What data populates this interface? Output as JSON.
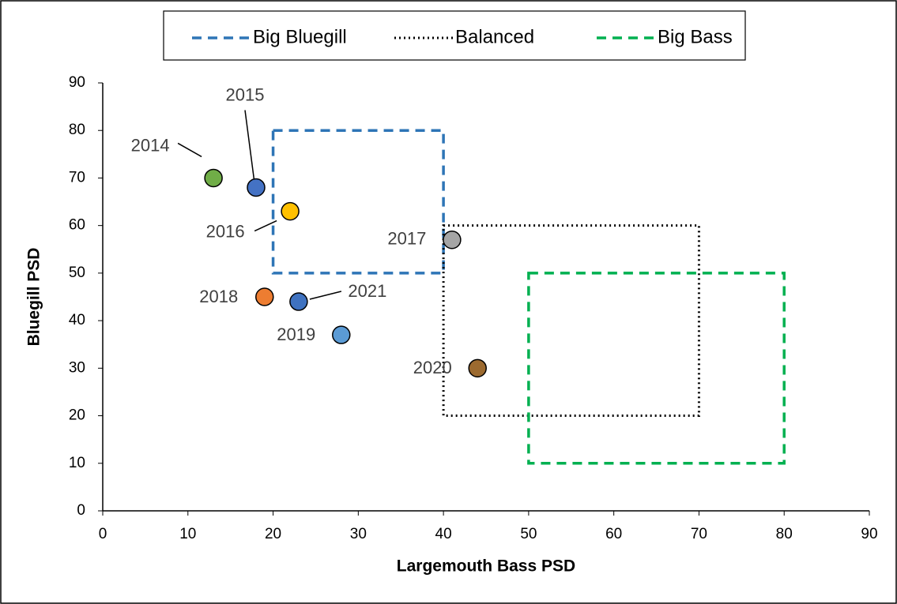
{
  "chart_data": {
    "type": "scatter",
    "x_label": "Largemouth Bass PSD",
    "y_label": "Bluegill PSD",
    "xlim": [
      0,
      90
    ],
    "xticks": [
      0,
      10,
      20,
      30,
      40,
      50,
      60,
      70,
      80,
      90
    ],
    "ylim": [
      0,
      90
    ],
    "yticks": [
      0,
      10,
      20,
      30,
      40,
      50,
      60,
      70,
      80,
      90
    ],
    "zones": [
      {
        "name": "Big Bluegill",
        "color": "#2e75b6",
        "style": "dashed",
        "x": [
          20,
          40
        ],
        "y": [
          50,
          80
        ]
      },
      {
        "name": "Balanced",
        "color": "#000000",
        "style": "dotted",
        "x": [
          40,
          70
        ],
        "y": [
          20,
          60
        ]
      },
      {
        "name": "Big Bass",
        "color": "#00b050",
        "style": "dashed",
        "x": [
          50,
          80
        ],
        "y": [
          10,
          50
        ]
      }
    ],
    "points": {
      "labels": [
        "2014",
        "2015",
        "2016",
        "2017",
        "2018",
        "2019",
        "2020",
        "2021"
      ],
      "x": [
        13,
        18,
        22,
        41,
        19,
        28,
        44,
        23
      ],
      "y": [
        70,
        68,
        63,
        57,
        45,
        37,
        30,
        44
      ],
      "colors": [
        "#70ad47",
        "#4472c4",
        "#ffc000",
        "#a5a5a5",
        "#ed7d31",
        "#5b9bd5",
        "#9c6a2f",
        "#3f72c0"
      ]
    }
  }
}
